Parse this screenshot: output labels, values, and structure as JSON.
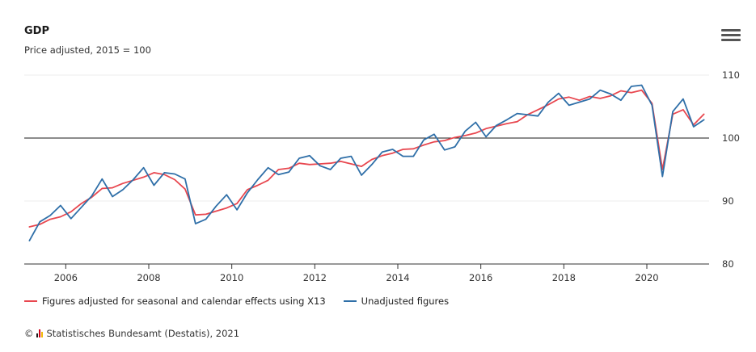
{
  "header": {
    "title": "GDP",
    "subtitle": "Price adjusted, 2015 = 100"
  },
  "menu": {
    "icon": "hamburger-menu-icon"
  },
  "legend": {
    "items": [
      {
        "label": "Figures adjusted for seasonal and calendar effects using X13",
        "color": "#e8474f"
      },
      {
        "label": "Unadjusted figures",
        "color": "#2f6fa8"
      }
    ]
  },
  "credits": {
    "copyright_symbol": "©",
    "logo_icon": "destatis-logo-icon",
    "text": "Statistisches Bundesamt (Destatis), 2021"
  },
  "chart_data": {
    "type": "line",
    "title": "GDP",
    "subtitle": "Price adjusted, 2015 = 100",
    "xlabel": "",
    "ylabel": "",
    "x_start": "2005 Q1",
    "x_end": "2021 Q2",
    "x_ticks": [
      "2006",
      "2008",
      "2010",
      "2012",
      "2014",
      "2016",
      "2018",
      "2020"
    ],
    "y_ticks": [
      80,
      90,
      100,
      110
    ],
    "ylim": [
      80,
      110
    ],
    "reference_line": 100,
    "grid": true,
    "legend_position": "bottom-left",
    "series": [
      {
        "name": "Figures adjusted for seasonal and calendar effects using X13",
        "color": "#e8474f",
        "x": [
          "2005 Q1",
          "2005 Q2",
          "2005 Q3",
          "2005 Q4",
          "2006 Q1",
          "2006 Q2",
          "2006 Q3",
          "2006 Q4",
          "2007 Q1",
          "2007 Q2",
          "2007 Q3",
          "2007 Q4",
          "2008 Q1",
          "2008 Q2",
          "2008 Q3",
          "2008 Q4",
          "2009 Q1",
          "2009 Q2",
          "2009 Q3",
          "2009 Q4",
          "2010 Q1",
          "2010 Q2",
          "2010 Q3",
          "2010 Q4",
          "2011 Q1",
          "2011 Q2",
          "2011 Q3",
          "2011 Q4",
          "2012 Q1",
          "2012 Q2",
          "2012 Q3",
          "2012 Q4",
          "2013 Q1",
          "2013 Q2",
          "2013 Q3",
          "2013 Q4",
          "2014 Q1",
          "2014 Q2",
          "2014 Q3",
          "2014 Q4",
          "2015 Q1",
          "2015 Q2",
          "2015 Q3",
          "2015 Q4",
          "2016 Q1",
          "2016 Q2",
          "2016 Q3",
          "2016 Q4",
          "2017 Q1",
          "2017 Q2",
          "2017 Q3",
          "2017 Q4",
          "2018 Q1",
          "2018 Q2",
          "2018 Q3",
          "2018 Q4",
          "2019 Q1",
          "2019 Q2",
          "2019 Q3",
          "2019 Q4",
          "2020 Q1",
          "2020 Q2",
          "2020 Q3",
          "2020 Q4",
          "2021 Q1",
          "2021 Q2"
        ],
        "values": [
          85.9,
          86.3,
          87.1,
          87.5,
          88.3,
          89.6,
          90.6,
          92.0,
          92.1,
          92.8,
          93.3,
          93.8,
          94.5,
          94.2,
          93.4,
          91.9,
          87.8,
          87.9,
          88.4,
          88.9,
          89.6,
          91.8,
          92.5,
          93.3,
          95.0,
          95.2,
          96.0,
          95.8,
          95.9,
          96.0,
          96.3,
          95.9,
          95.5,
          96.6,
          97.2,
          97.6,
          98.2,
          98.3,
          98.9,
          99.4,
          99.6,
          100.1,
          100.4,
          100.8,
          101.5,
          101.9,
          102.3,
          102.6,
          103.7,
          104.5,
          105.3,
          106.2,
          106.5,
          106.0,
          106.6,
          106.3,
          106.7,
          107.5,
          107.2,
          107.6,
          105.5,
          95.0,
          103.8,
          104.5,
          102.1,
          103.8
        ]
      },
      {
        "name": "Unadjusted figures",
        "color": "#2f6fa8",
        "x": [
          "2005 Q1",
          "2005 Q2",
          "2005 Q3",
          "2005 Q4",
          "2006 Q1",
          "2006 Q2",
          "2006 Q3",
          "2006 Q4",
          "2007 Q1",
          "2007 Q2",
          "2007 Q3",
          "2007 Q4",
          "2008 Q1",
          "2008 Q2",
          "2008 Q3",
          "2008 Q4",
          "2009 Q1",
          "2009 Q2",
          "2009 Q3",
          "2009 Q4",
          "2010 Q1",
          "2010 Q2",
          "2010 Q3",
          "2010 Q4",
          "2011 Q1",
          "2011 Q2",
          "2011 Q3",
          "2011 Q4",
          "2012 Q1",
          "2012 Q2",
          "2012 Q3",
          "2012 Q4",
          "2013 Q1",
          "2013 Q2",
          "2013 Q3",
          "2013 Q4",
          "2014 Q1",
          "2014 Q2",
          "2014 Q3",
          "2014 Q4",
          "2015 Q1",
          "2015 Q2",
          "2015 Q3",
          "2015 Q4",
          "2016 Q1",
          "2016 Q2",
          "2016 Q3",
          "2016 Q4",
          "2017 Q1",
          "2017 Q2",
          "2017 Q3",
          "2017 Q4",
          "2018 Q1",
          "2018 Q2",
          "2018 Q3",
          "2018 Q4",
          "2019 Q1",
          "2019 Q2",
          "2019 Q3",
          "2019 Q4",
          "2020 Q1",
          "2020 Q2",
          "2020 Q3",
          "2020 Q4",
          "2021 Q1",
          "2021 Q2"
        ],
        "values": [
          83.7,
          86.7,
          87.7,
          89.3,
          87.2,
          89.0,
          90.8,
          93.5,
          90.7,
          91.8,
          93.4,
          95.3,
          92.5,
          94.5,
          94.3,
          93.5,
          86.4,
          87.1,
          89.2,
          91.0,
          88.6,
          91.3,
          93.4,
          95.3,
          94.2,
          94.6,
          96.8,
          97.2,
          95.6,
          95.0,
          96.8,
          97.1,
          94.1,
          95.8,
          97.8,
          98.2,
          97.1,
          97.1,
          99.7,
          100.6,
          98.1,
          98.6,
          101.1,
          102.5,
          100.2,
          102.0,
          102.9,
          103.9,
          103.7,
          103.5,
          105.7,
          107.1,
          105.2,
          105.7,
          106.2,
          107.6,
          107.0,
          106.0,
          108.2,
          108.4,
          105.2,
          93.9,
          104.2,
          106.2,
          101.8,
          102.9
        ]
      }
    ]
  }
}
